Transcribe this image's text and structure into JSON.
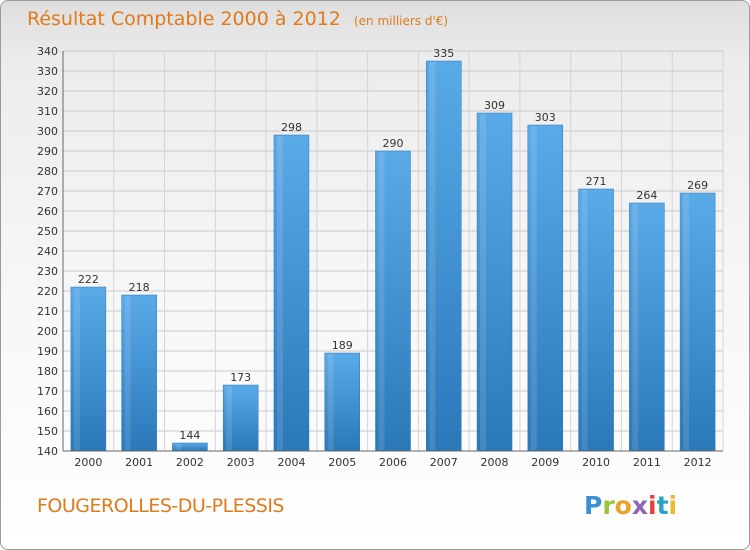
{
  "chart_data": {
    "type": "bar",
    "title": "Résultat Comptable 2000 à 2012",
    "subtitle": "(en milliers d'€)",
    "categories": [
      "2000",
      "2001",
      "2002",
      "2003",
      "2004",
      "2005",
      "2006",
      "2007",
      "2008",
      "2009",
      "2010",
      "2011",
      "2012"
    ],
    "values": [
      222,
      218,
      144,
      173,
      298,
      189,
      290,
      335,
      309,
      303,
      271,
      264,
      269
    ],
    "ylim": [
      140,
      340
    ],
    "yticks": [
      140,
      150,
      160,
      170,
      180,
      190,
      200,
      210,
      220,
      230,
      240,
      250,
      260,
      270,
      280,
      290,
      300,
      310,
      320,
      330,
      340
    ],
    "grid": true,
    "bar_color_top": "#5aaae8",
    "bar_color_bottom": "#2a78b8",
    "title_color": "#e07a1b"
  },
  "footer": {
    "commune": "FOUGEROLLES-DU-PLESSIS",
    "logo": "Proxiti"
  }
}
